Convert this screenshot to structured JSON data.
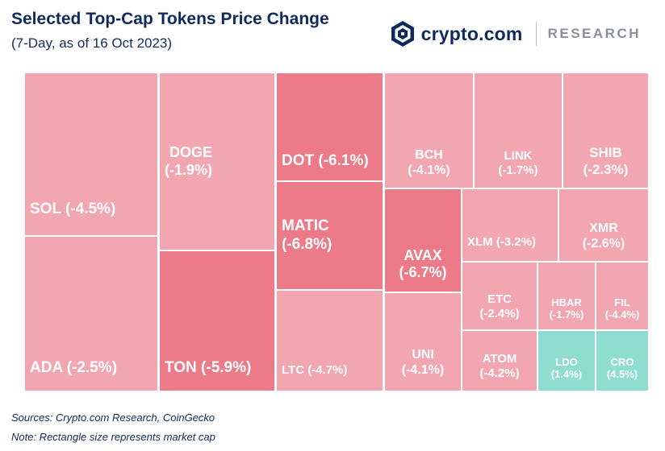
{
  "header": {
    "title": "Selected Top-Cap Tokens Price Change",
    "subtitle": "(7-Day, as of 16 Oct 2023)"
  },
  "brand": {
    "name": "crypto.com",
    "sub": "RESEARCH",
    "logo_icon": "crypto-com-shield-icon"
  },
  "colors": {
    "light": "#f1a6b0",
    "dark": "#ec7a88",
    "positive": "#8fddd0",
    "title": "#0f2a5c"
  },
  "chart_data": {
    "type": "treemap",
    "value_meaning": "7-day price change (%)",
    "items": [
      {
        "name": "SOL",
        "label": "SOL (-4.5%)",
        "change": -4.5
      },
      {
        "name": "ADA",
        "label": "ADA (-2.5%)",
        "change": -2.5
      },
      {
        "name": "DOGE",
        "label": "DOGE (-1.9%)",
        "change": -1.9
      },
      {
        "name": "TON",
        "label": "TON (-5.9%)",
        "change": -5.9
      },
      {
        "name": "DOT",
        "label": "DOT (-6.1%)",
        "change": -6.1
      },
      {
        "name": "MATIC",
        "label": "MATIC (-6.8%)",
        "change": -6.8
      },
      {
        "name": "LTC",
        "label": "LTC (-4.7%)",
        "change": -4.7
      },
      {
        "name": "BCH",
        "label": "BCH (-4.1%)",
        "change": -4.1
      },
      {
        "name": "LINK",
        "label": "LINK (-1.7%)",
        "change": -1.7
      },
      {
        "name": "SHIB",
        "label": "SHIB (-2.3%)",
        "change": -2.3
      },
      {
        "name": "AVAX",
        "label": "AVAX (-6.7%)",
        "change": -6.7
      },
      {
        "name": "UNI",
        "label": "UNI (-4.1%)",
        "change": -4.1
      },
      {
        "name": "XLM",
        "label": "XLM (-3.2%)",
        "change": -3.2
      },
      {
        "name": "XMR",
        "label": "XMR (-2.6%)",
        "change": -2.6
      },
      {
        "name": "ETC",
        "label": "ETC (-2.4%)",
        "change": -2.4
      },
      {
        "name": "HBAR",
        "label": "HBAR (-1.7%)",
        "change": -1.7
      },
      {
        "name": "FIL",
        "label": "FIL (-4.4%)",
        "change": -4.4
      },
      {
        "name": "ATOM",
        "label": "ATOM (-4.2%)",
        "change": -4.2
      },
      {
        "name": "LDO",
        "label": "LDO (1.4%)",
        "change": 1.4
      },
      {
        "name": "CRO",
        "label": "CRO (4.5%)",
        "change": 4.5
      }
    ]
  },
  "footer": {
    "sources": "Sources: Crypto.com Research, CoinGecko",
    "note": "Note: Rectangle size represents market cap"
  }
}
